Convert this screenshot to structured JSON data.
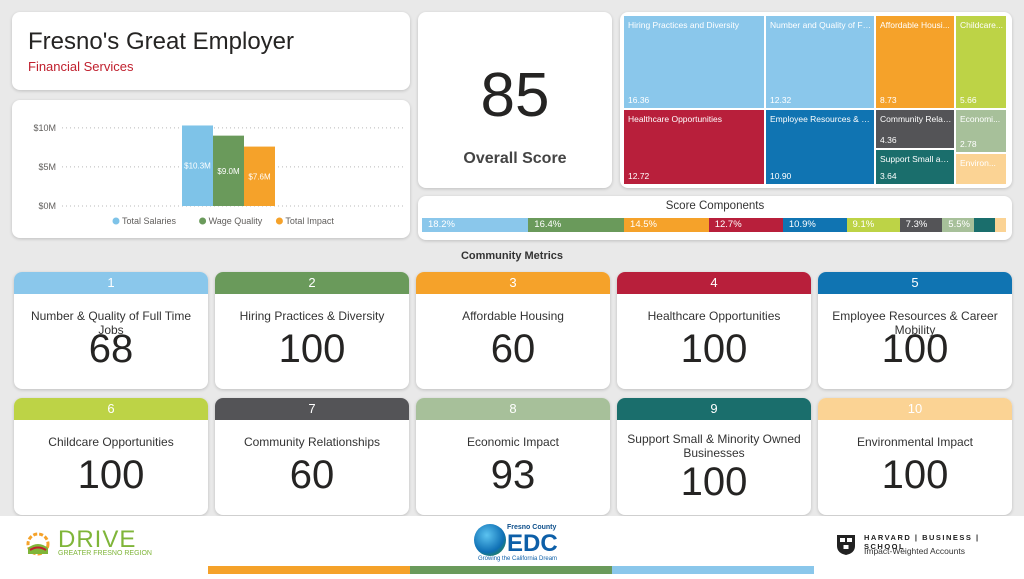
{
  "header": {
    "title": "Fresno's Great Employer",
    "subtitle": "Financial Services"
  },
  "overall": {
    "score": "85",
    "label": "Overall Score"
  },
  "chart_data": [
    {
      "type": "bar",
      "categories": [
        "Total Salaries",
        "Wage Quality",
        "Total Impact"
      ],
      "values": [
        10.3,
        9.0,
        7.6
      ],
      "data_labels": [
        "$10.3M",
        "$9.0M",
        "$7.6M"
      ],
      "yticks": [
        "$10M",
        "$5M",
        "$0M"
      ],
      "ylim": [
        0,
        11
      ],
      "ytick_values": [
        10,
        5,
        0
      ],
      "legend": [
        "Total Salaries",
        "Wage Quality",
        "Total Impact"
      ],
      "legend_placement": "bottom",
      "colors": [
        "#7ec3e8",
        "#6a9a5b",
        "#f5a22a"
      ],
      "grid": true
    },
    {
      "type": "treemap",
      "items": [
        {
          "name": "Hiring Practices and Diversity",
          "value": "16.36",
          "color": "#8ac7eb"
        },
        {
          "name": "Healthcare Opportunities",
          "value": "12.72",
          "color": "#b81f3b"
        },
        {
          "name": "Number and Quality of Full Time Jobs",
          "display_name": "Number and Quality of Fu...",
          "value": "12.32",
          "color": "#8ac7eb"
        },
        {
          "name": "Employee Resources & Career Mobility",
          "display_name": "Employee Resources & C...",
          "value": "10.90",
          "color": "#1074b2"
        },
        {
          "name": "Affordable Housing",
          "display_name": "Affordable Housi...",
          "value": "8.73",
          "color": "#f5a22a"
        },
        {
          "name": "Community Relationships",
          "display_name": "Community Relati...",
          "value": "4.36",
          "color": "#545457"
        },
        {
          "name": "Support Small and Minority Owned Businesses",
          "display_name": "Support Small an...",
          "value": "3.64",
          "color": "#1a6e6c"
        },
        {
          "name": "Childcare Opportunities",
          "display_name": "Childcare...",
          "value": "5.66",
          "color": "#bdd346"
        },
        {
          "name": "Economic Impact",
          "display_name": "Economi...",
          "value": "2.78",
          "color": "#a7c09a"
        },
        {
          "name": "Environmental Impact",
          "display_name": "Environ...",
          "value": "",
          "color": "#fbd394"
        }
      ]
    },
    {
      "type": "bar",
      "orientation": "horizontal-stacked-100",
      "title": "Score Components",
      "segments": [
        {
          "label": "18.2%",
          "value": 18.2,
          "color": "#8ac7eb"
        },
        {
          "label": "16.4%",
          "value": 16.4,
          "color": "#6a9a5b"
        },
        {
          "label": "14.5%",
          "value": 14.5,
          "color": "#f5a22a"
        },
        {
          "label": "12.7%",
          "value": 12.7,
          "color": "#b81f3b"
        },
        {
          "label": "10.9%",
          "value": 10.9,
          "color": "#1074b2"
        },
        {
          "label": "9.1%",
          "value": 9.1,
          "color": "#bdd346"
        },
        {
          "label": "7.3%",
          "value": 7.3,
          "color": "#545457"
        },
        {
          "label": "5.5%",
          "value": 5.5,
          "color": "#a7c09a"
        },
        {
          "label": "",
          "value": 3.6,
          "color": "#1a6e6c"
        },
        {
          "label": "",
          "value": 1.8,
          "color": "#fbd394"
        }
      ]
    }
  ],
  "metrics": {
    "title": "Community Metrics",
    "items": [
      {
        "num": "1",
        "label": "Number & Quality of Full Time Jobs",
        "value": "68",
        "color": "#8ac7eb"
      },
      {
        "num": "2",
        "label": "Hiring Practices & Diversity",
        "value": "100",
        "color": "#6a9a5b"
      },
      {
        "num": "3",
        "label": "Affordable Housing",
        "value": "60",
        "color": "#f5a22a"
      },
      {
        "num": "4",
        "label": "Healthcare Opportunities",
        "value": "100",
        "color": "#b81f3b"
      },
      {
        "num": "5",
        "label": "Employee Resources & Career Mobility",
        "value": "100",
        "color": "#1074b2"
      },
      {
        "num": "6",
        "label": "Childcare Opportunities",
        "value": "100",
        "color": "#bdd346"
      },
      {
        "num": "7",
        "label": "Community Relationships",
        "value": "60",
        "color": "#545457"
      },
      {
        "num": "8",
        "label": "Economic Impact",
        "value": "93",
        "color": "#a7c09a"
      },
      {
        "num": "9",
        "label": "Support Small & Minority Owned Businesses",
        "value": "100",
        "color": "#1a6e6c"
      },
      {
        "num": "10",
        "label": "Environmental Impact",
        "value": "100",
        "color": "#fbd394"
      }
    ]
  },
  "footer": {
    "drive_text": "DRIVE",
    "drive_sub": "GREATER FRESNO REGION",
    "edc_top": "Fresno County",
    "edc_main": "EDC",
    "edc_tag": "Growing the California Dream",
    "hbs_top": "HARVARD | BUSINESS | SCHOOL",
    "hbs_sub": "Impact-Weighted Accounts",
    "icons": [
      "drive-logo-icon",
      "edc-globe-icon",
      "hbs-shield-icon"
    ],
    "stripe_colors": [
      "#f5a22a",
      "#6a9a5b",
      "#8ac7eb"
    ]
  }
}
